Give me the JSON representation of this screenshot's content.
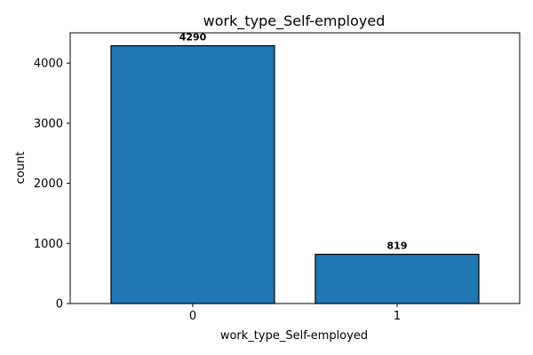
{
  "chart_data": {
    "type": "bar",
    "title": "work_type_Self-employed",
    "xlabel": "work_type_Self-employed",
    "ylabel": "count",
    "categories": [
      "0",
      "1"
    ],
    "values": [
      4290,
      819
    ],
    "data_labels": [
      "4290",
      "819"
    ],
    "ylim": [
      0,
      4504.5
    ],
    "yticks": [
      0,
      1000,
      2000,
      3000,
      4000
    ],
    "ytick_labels": [
      "0",
      "1000",
      "2000",
      "3000",
      "4000"
    ],
    "bar_color": "#1f77b4",
    "bar_edge_color": "#000000",
    "grid": false,
    "legend": "none"
  }
}
